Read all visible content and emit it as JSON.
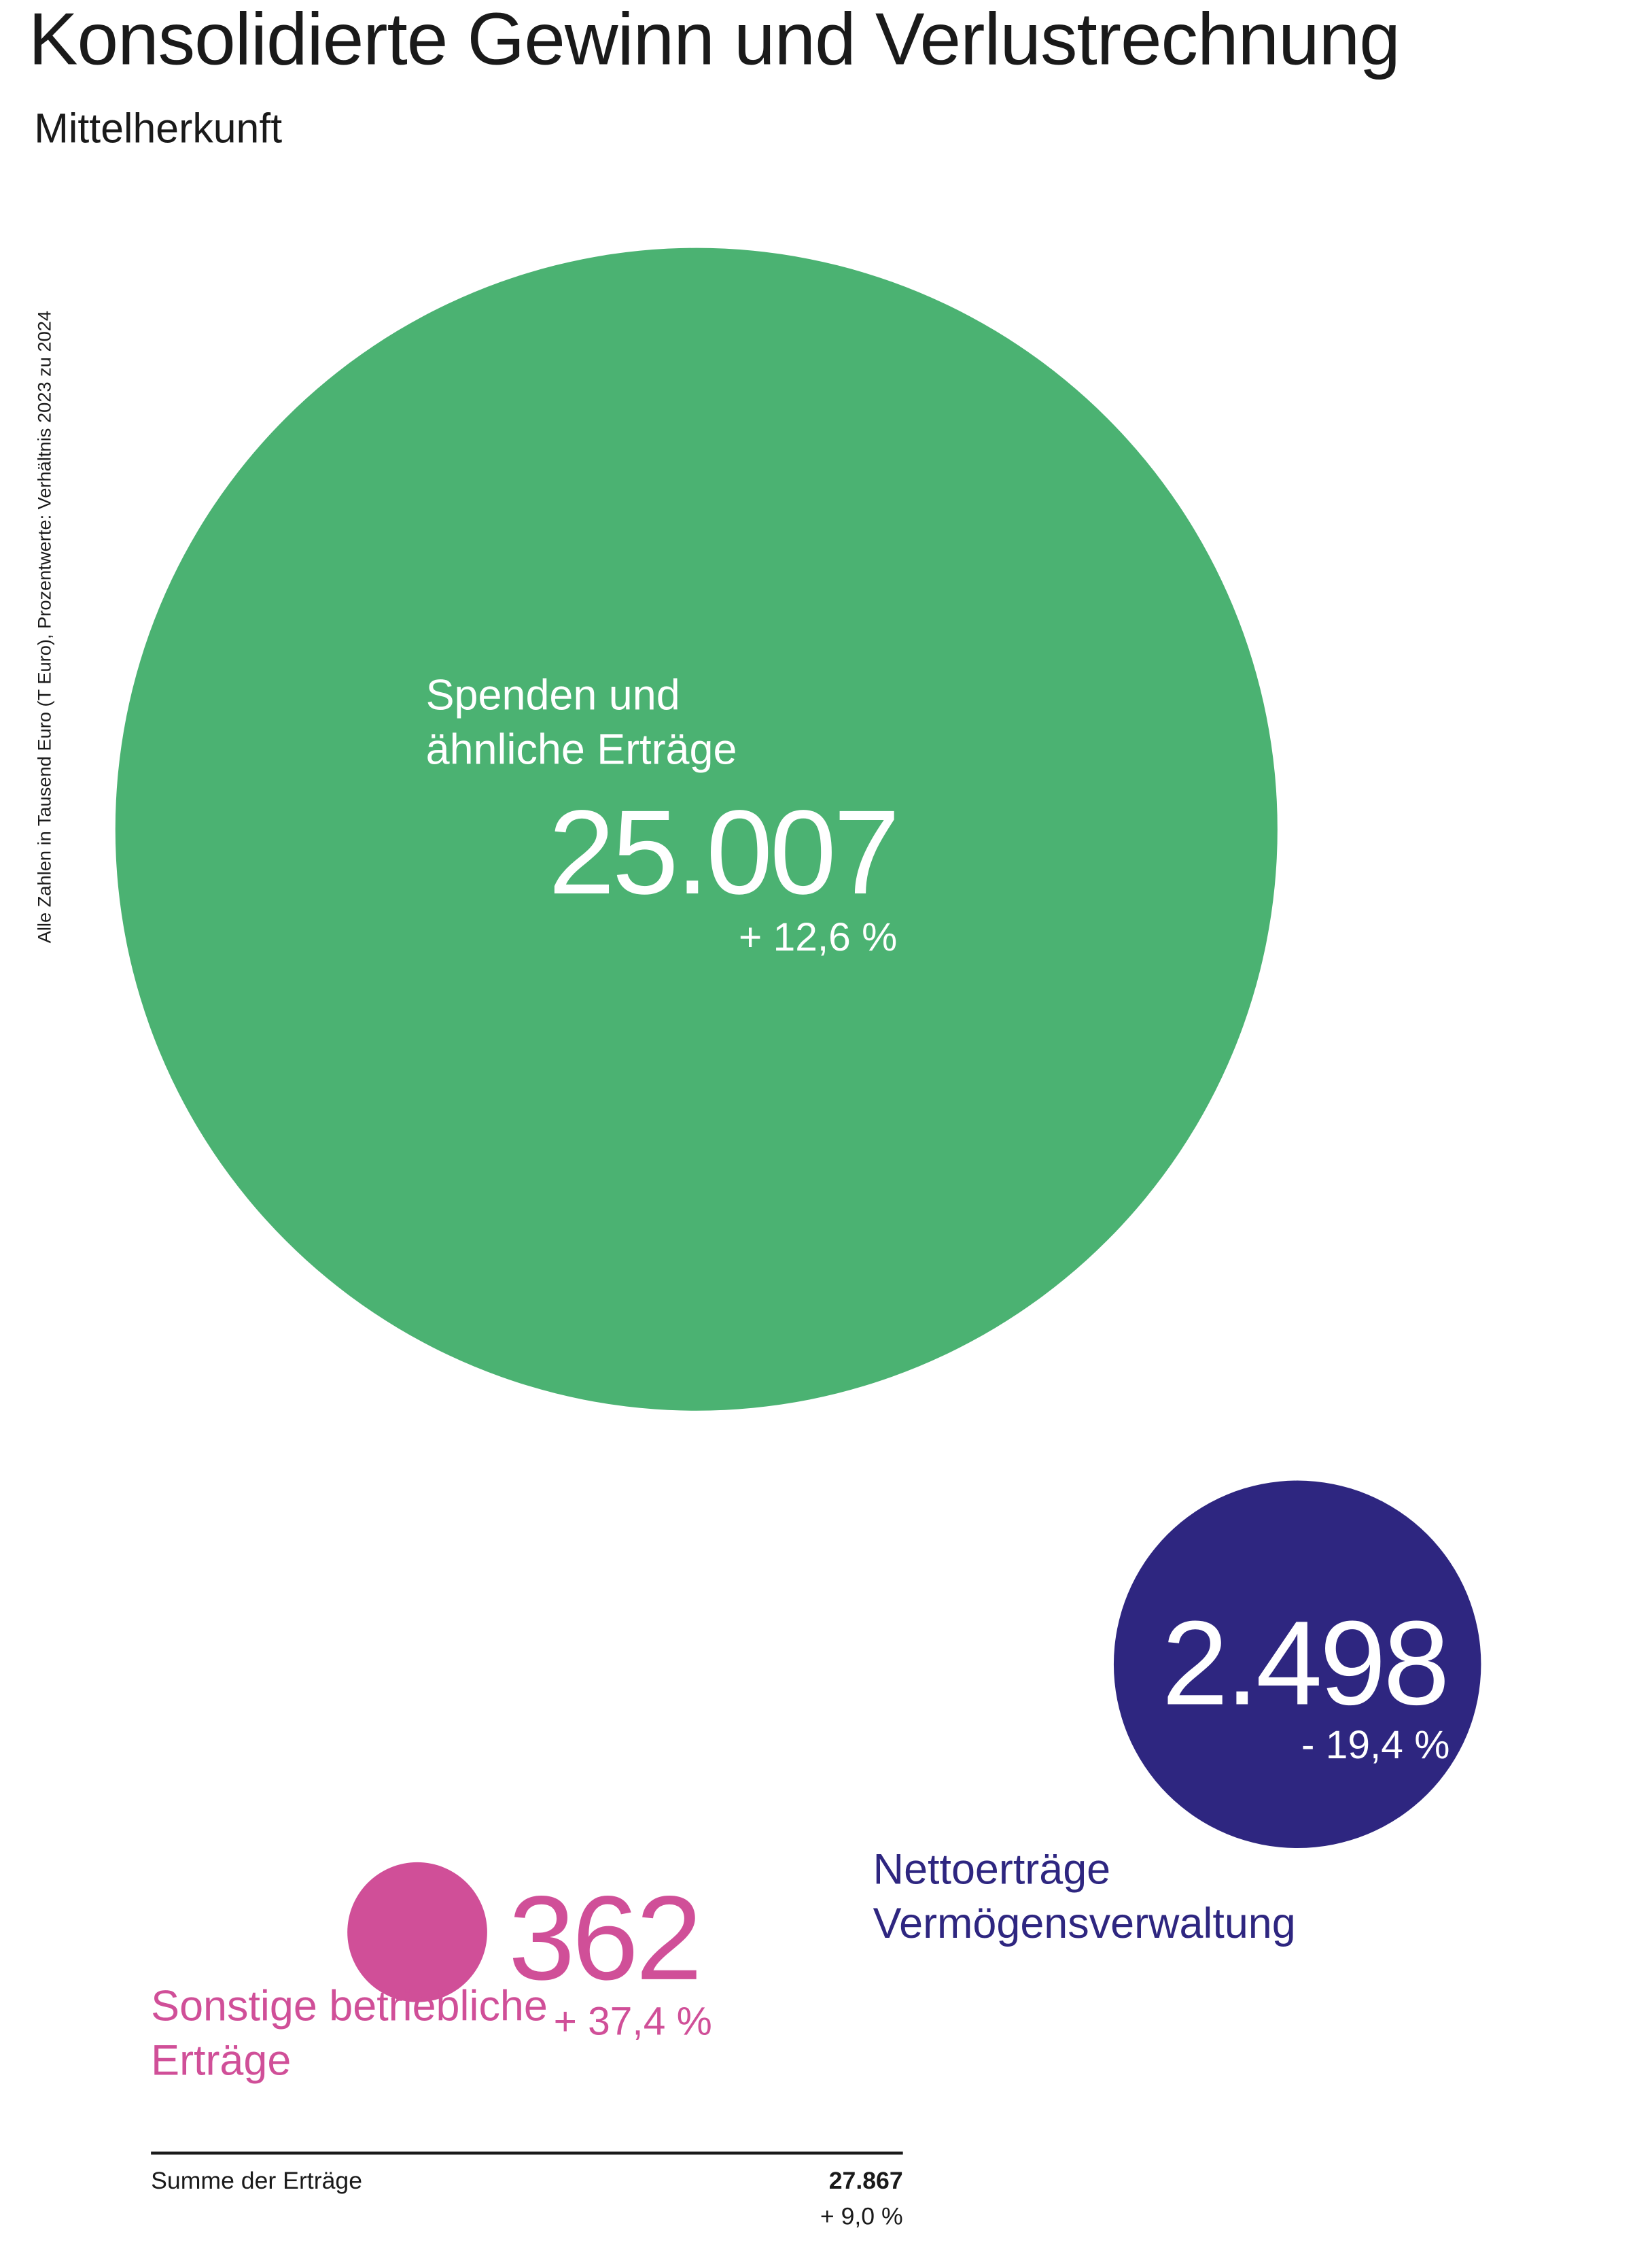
{
  "chart_data": {
    "type": "bubble",
    "title": "Konsolidierte Gewinn und Verlustrechnung",
    "subtitle": "Mittelherkunft",
    "note": "Alle Zahlen in Tausend Euro (T Euro), Prozentwerte: Verhältnis 2023 zu 2024",
    "series": [
      {
        "name": "Spenden und ähnliche Erträge",
        "color": "#4bb272",
        "value": 25007,
        "value_label": "25.007",
        "change": 12.6,
        "change_label": "+ 12,6 %"
      },
      {
        "name": "Nettoerträge Vermögensverwaltung",
        "color": "#2e2680",
        "value": 2498,
        "value_label": "2.498",
        "change": -19.4,
        "change_label": "- 19,4 %"
      },
      {
        "name": "Sonstige betriebliche Erträge",
        "color": "#d04f98",
        "value": 362,
        "value_label": "362",
        "change": 37.4,
        "change_label": "+ 37,4 %"
      }
    ],
    "total": {
      "name": "Summe der Erträge",
      "value": 27867,
      "value_label": "27.867",
      "change": 9.0,
      "change_label": "+ 9,0 %"
    }
  }
}
